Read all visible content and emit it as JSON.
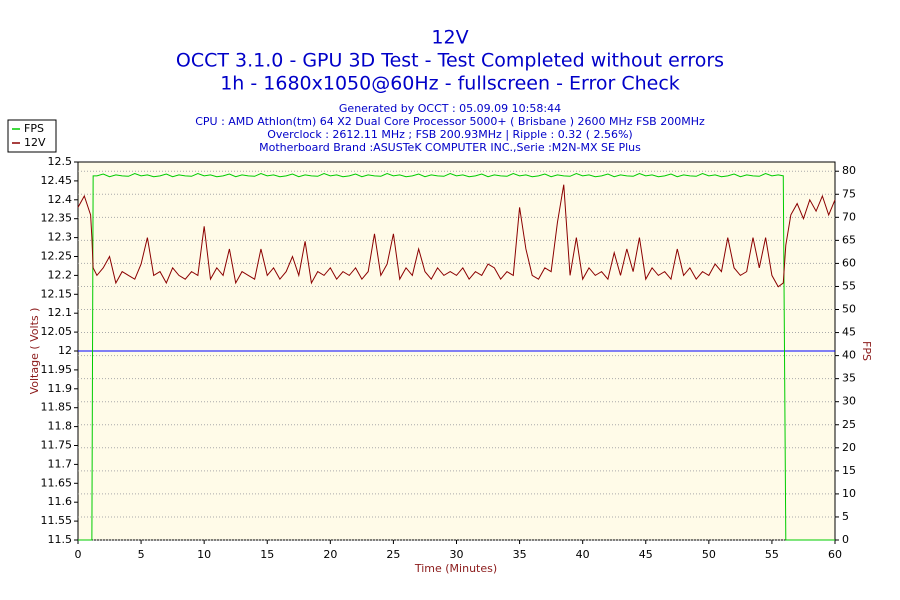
{
  "chart_data": {
    "type": "line",
    "title": "12V",
    "subtitle": [
      "OCCT 3.1.0 - GPU 3D Test - Test Completed without errors",
      "1h - 1680x1050@60Hz - fullscreen - Error Check"
    ],
    "info": [
      "Generated by OCCT : 05.09.09 10:58:44",
      "CPU : AMD Athlon(tm) 64 X2 Dual Core Processor 5000+ ( Brisbane ) 2600 MHz FSB 200MHz",
      "Overclock : 2612.11 MHz ; FSB 200.93MHz | Ripple : 0.32 ( 2.56%)",
      "Motherboard Brand :ASUSTeK COMPUTER INC.,Serie :M2N-MX SE Plus"
    ],
    "x_label": "Time (Minutes)",
    "y_label": "Voltage ( Volts )",
    "y2_label": "FPS",
    "legend": "top-left",
    "grid": true,
    "xlim": [
      0,
      60
    ],
    "xticks": [
      0,
      5,
      10,
      15,
      20,
      25,
      30,
      35,
      40,
      45,
      50,
      55,
      60
    ],
    "ylim": [
      11.5,
      12.5
    ],
    "yticks": [
      11.5,
      11.55,
      11.6,
      11.65,
      11.7,
      11.75,
      11.8,
      11.85,
      11.9,
      11.95,
      12,
      12.05,
      12.1,
      12.15,
      12.2,
      12.25,
      12.3,
      12.35,
      12.4,
      12.45,
      12.5
    ],
    "y2lim": [
      0,
      82
    ],
    "y2ticks": [
      0,
      5,
      10,
      15,
      20,
      25,
      30,
      35,
      40,
      45,
      50,
      55,
      60,
      65,
      70,
      75,
      80
    ],
    "reference_line": {
      "value": 12,
      "color": "#0000ff"
    },
    "x": [
      0,
      0.5,
      1,
      1.1,
      1.2,
      1.5,
      2,
      2.5,
      3,
      3.5,
      4,
      4.5,
      5,
      5.5,
      6,
      6.5,
      7,
      7.5,
      8,
      8.5,
      9,
      9.5,
      10,
      10.5,
      11,
      11.5,
      12,
      12.5,
      13,
      13.5,
      14,
      14.5,
      15,
      15.5,
      16,
      16.5,
      17,
      17.5,
      18,
      18.5,
      19,
      19.5,
      20,
      20.5,
      21,
      21.5,
      22,
      22.5,
      23,
      23.5,
      24,
      24.5,
      25,
      25.5,
      26,
      26.5,
      27,
      27.5,
      28,
      28.5,
      29,
      29.5,
      30,
      30.5,
      31,
      31.5,
      32,
      32.5,
      33,
      33.5,
      34,
      34.5,
      35,
      35.5,
      36,
      36.5,
      37,
      37.5,
      38,
      38.5,
      39,
      39.5,
      40,
      40.5,
      41,
      41.5,
      42,
      42.5,
      43,
      43.5,
      44,
      44.5,
      45,
      45.5,
      46,
      46.5,
      47,
      47.5,
      48,
      48.5,
      49,
      49.5,
      50,
      50.5,
      51,
      51.5,
      52,
      52.5,
      53,
      53.5,
      54,
      54.5,
      55,
      55.5,
      55.9,
      56.1,
      56.5,
      57,
      57.5,
      58,
      58.5,
      59,
      59.5,
      60
    ],
    "series": [
      {
        "name": "FPS",
        "color": "#00cc00",
        "axis": "y2",
        "values": [
          0,
          0,
          0,
          0,
          79,
          79,
          79.4,
          78.8,
          79.2,
          79,
          78.9,
          79.5,
          79,
          79.2,
          78.8,
          79,
          79.4,
          78.8,
          79.2,
          79,
          78.9,
          79.5,
          79,
          79.2,
          78.8,
          79,
          79.4,
          78.8,
          79.2,
          79,
          78.9,
          79.5,
          79,
          79.2,
          78.8,
          79,
          79.4,
          78.8,
          79.2,
          79,
          78.9,
          79.5,
          79,
          79.2,
          78.8,
          79,
          79.4,
          78.8,
          79.2,
          79,
          78.9,
          79.5,
          79,
          79.2,
          78.8,
          79,
          79.4,
          78.8,
          79.2,
          79,
          78.9,
          79.5,
          79,
          79.2,
          78.8,
          79,
          79.4,
          78.8,
          79.2,
          79,
          78.9,
          79.5,
          79,
          79.2,
          78.8,
          79,
          79.4,
          78.8,
          79.2,
          79,
          78.9,
          79.5,
          79,
          79.2,
          78.8,
          79,
          79.4,
          78.8,
          79.2,
          79,
          78.9,
          79.5,
          79,
          79.2,
          78.8,
          79,
          79.4,
          78.8,
          79.2,
          79,
          78.9,
          79.5,
          79,
          79.2,
          78.8,
          79,
          79.4,
          78.8,
          79.2,
          79,
          78.9,
          79.5,
          79,
          79.2,
          79,
          0,
          0,
          0,
          0,
          0,
          0,
          0,
          0,
          0
        ]
      },
      {
        "name": "12V",
        "color": "#8b0000",
        "values": [
          12.38,
          12.41,
          12.36,
          12.3,
          12.22,
          12.2,
          12.22,
          12.25,
          12.18,
          12.21,
          12.2,
          12.19,
          12.23,
          12.3,
          12.2,
          12.21,
          12.18,
          12.22,
          12.2,
          12.19,
          12.21,
          12.2,
          12.33,
          12.19,
          12.22,
          12.2,
          12.27,
          12.18,
          12.21,
          12.2,
          12.19,
          12.27,
          12.2,
          12.22,
          12.19,
          12.21,
          12.25,
          12.2,
          12.29,
          12.18,
          12.21,
          12.2,
          12.22,
          12.19,
          12.21,
          12.2,
          12.22,
          12.19,
          12.21,
          12.31,
          12.2,
          12.23,
          12.31,
          12.19,
          12.22,
          12.2,
          12.27,
          12.21,
          12.19,
          12.22,
          12.2,
          12.21,
          12.2,
          12.22,
          12.19,
          12.21,
          12.2,
          12.23,
          12.22,
          12.19,
          12.21,
          12.2,
          12.38,
          12.27,
          12.2,
          12.19,
          12.22,
          12.21,
          12.34,
          12.44,
          12.2,
          12.3,
          12.19,
          12.22,
          12.2,
          12.21,
          12.19,
          12.26,
          12.2,
          12.27,
          12.21,
          12.3,
          12.19,
          12.22,
          12.2,
          12.21,
          12.19,
          12.27,
          12.2,
          12.22,
          12.19,
          12.21,
          12.2,
          12.23,
          12.21,
          12.3,
          12.22,
          12.2,
          12.21,
          12.3,
          12.22,
          12.3,
          12.2,
          12.17,
          12.18,
          12.28,
          12.36,
          12.39,
          12.35,
          12.4,
          12.37,
          12.41,
          12.36,
          12.4
        ]
      }
    ]
  }
}
